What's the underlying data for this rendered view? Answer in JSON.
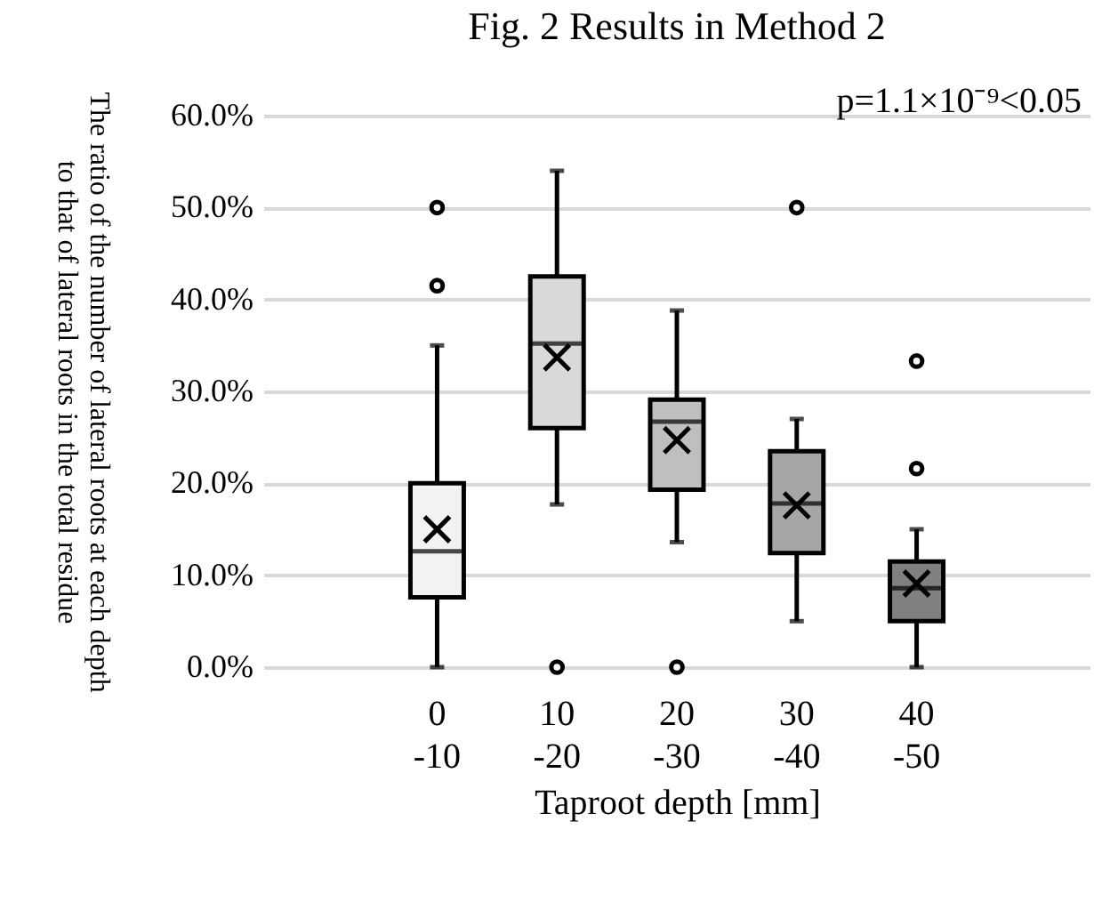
{
  "chart_data": {
    "type": "box",
    "title": "Fig. 2 Results in Method 2",
    "xlabel": "Taproot depth [mm]",
    "ylabel": "The ratio of the number of lateral roots at each depth\nto that of lateral roots in the total residue",
    "categories": [
      "0\n-10",
      "10\n-20",
      "20\n-30",
      "30\n-40",
      "40\n-50"
    ],
    "colors": [
      "#f2f2f2",
      "#d9d9d9",
      "#bfbfbf",
      "#a6a6a6",
      "#808080"
    ],
    "boxes": [
      {
        "low": 0,
        "q1": 7.6,
        "median": 12.6,
        "q3": 20,
        "high": 35,
        "mean": 15,
        "outliers": [
          41.5,
          50
        ]
      },
      {
        "low": 17.7,
        "q1": 26,
        "median": 35.2,
        "q3": 42.5,
        "high": 54,
        "mean": 33.7,
        "outliers": [
          0
        ]
      },
      {
        "low": 13.6,
        "q1": 19.3,
        "median": 26.7,
        "q3": 29.1,
        "high": 38.8,
        "mean": 24.7,
        "outliers": [
          0
        ]
      },
      {
        "low": 5,
        "q1": 12.4,
        "median": 17.8,
        "q3": 23.5,
        "high": 27,
        "mean": 17.6,
        "outliers": [
          50
        ]
      },
      {
        "low": 0,
        "q1": 5,
        "median": 8.6,
        "q3": 11.5,
        "high": 15,
        "mean": 9.1,
        "outliers": [
          21.6,
          33.3
        ]
      }
    ],
    "ylim": [
      0,
      60
    ],
    "yticks": [
      {
        "value": 0,
        "label": "0.0%"
      },
      {
        "value": 10,
        "label": "10.0%"
      },
      {
        "value": 20,
        "label": "20.0%"
      },
      {
        "value": 30,
        "label": "30.0%"
      },
      {
        "value": 40,
        "label": "40.0%"
      },
      {
        "value": 50,
        "label": "50.0%"
      },
      {
        "value": 60,
        "label": "60.0%"
      }
    ],
    "grid": "y",
    "annotations": [
      "p=1.1×10⁻⁹<0.05"
    ]
  }
}
